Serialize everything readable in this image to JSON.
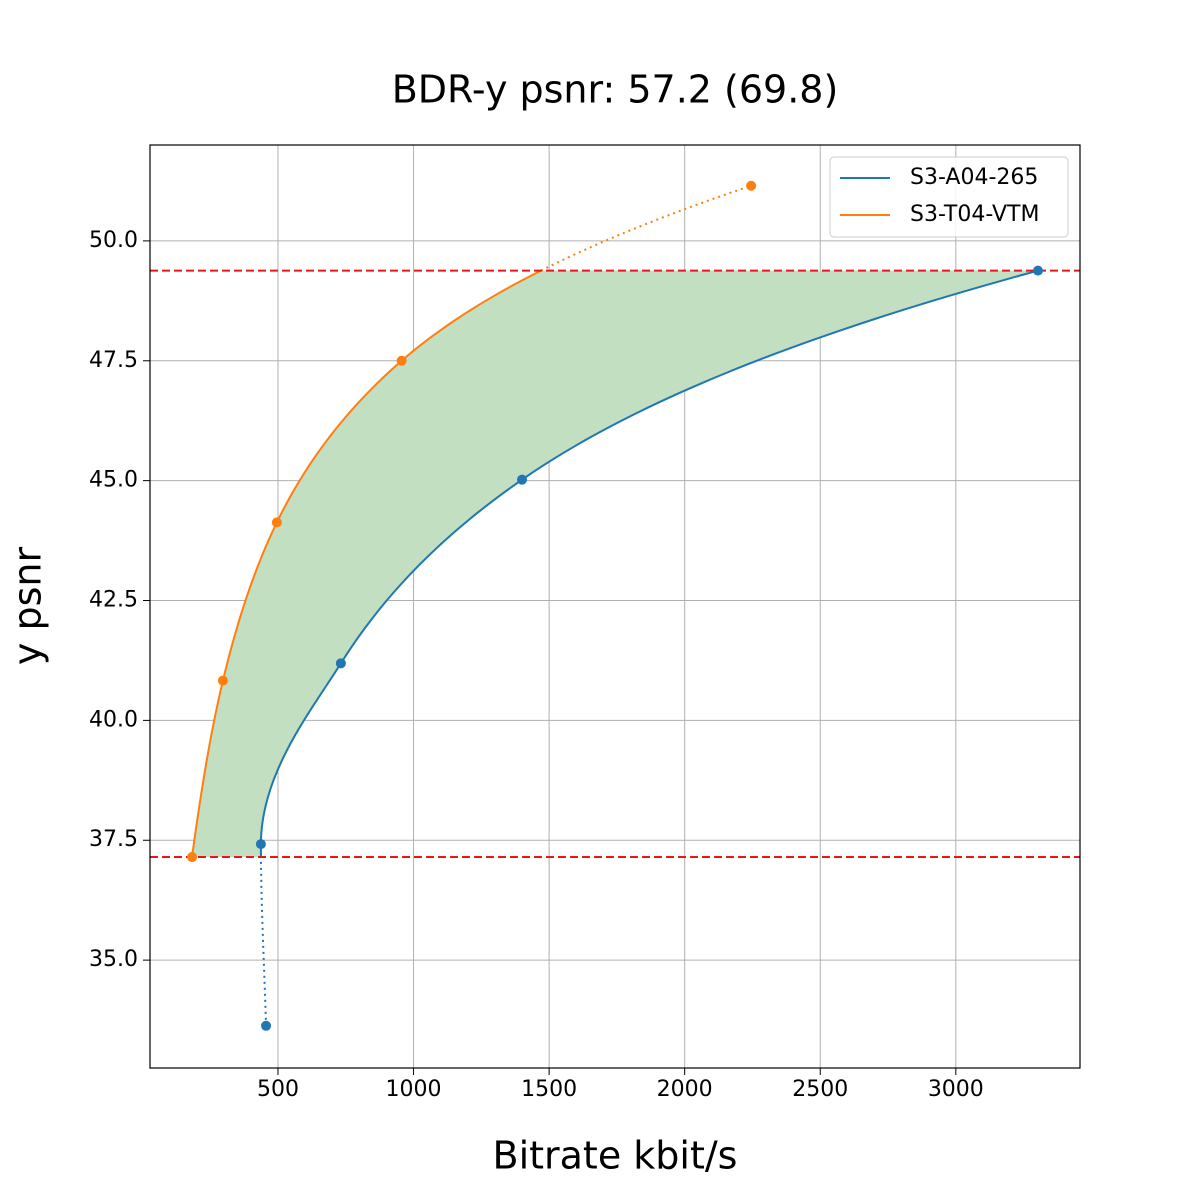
{
  "chart_data": {
    "type": "rd-curve",
    "title": "BDR-y psnr: 57.2 (69.8)",
    "x_label": "Bitrate kbit/s",
    "y_label": "y psnr",
    "series": [
      {
        "name": "S3-A04-265",
        "color": "#1f77b4",
        "x": [
          456,
          437,
          732,
          1400,
          3303
        ],
        "values": [
          33.63,
          37.42,
          41.19,
          45.02,
          49.38
        ]
      },
      {
        "name": "S3-T04-VTM",
        "color": "#ff7f0e",
        "x": [
          183,
          297,
          496,
          956,
          2245
        ],
        "values": [
          37.15,
          40.83,
          44.13,
          47.5,
          51.15
        ]
      }
    ],
    "xlim": [
      28,
      3458
    ],
    "ylim": [
      32.75,
      52.0
    ],
    "xticks": [
      500,
      1000,
      1500,
      2000,
      2500,
      3000
    ],
    "yticks": [
      {
        "value": 35,
        "label": "35.0"
      },
      37.5,
      {
        "value": 40,
        "label": "40.0"
      },
      42.5,
      {
        "value": 45,
        "label": "45.0"
      },
      47.5,
      {
        "value": 50,
        "label": "50.0"
      }
    ],
    "grid": true,
    "legend": "upper right",
    "fill_color": "#c2dfc2",
    "limit_color": "#e8161b"
  }
}
